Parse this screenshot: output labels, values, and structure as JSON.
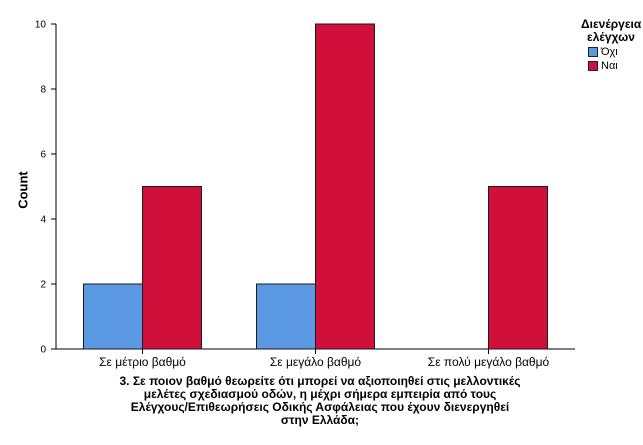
{
  "chart_data": {
    "type": "bar",
    "categories": [
      "Σε μέτριο βαθμό",
      "Σε μεγάλο βαθμό",
      "Σε πολύ μεγάλο βαθμό"
    ],
    "series": [
      {
        "name": "Όχι",
        "values": [
          2,
          2,
          0
        ],
        "color": "#5b9ae3"
      },
      {
        "name": "Ναι",
        "values": [
          5,
          10,
          5
        ],
        "color": "#d0103a"
      }
    ],
    "ylabel": "Count",
    "xlabel": "3. Σε ποιον βαθμό θεωρείτε ότι μπορεί να αξιοποιηθεί στις μελλοντικές\nμελέτες σχεδιασμού οδών, η μέχρι σήμερα εμπειρία από τους\nΕλέγχους/Επιθεωρήσεις Οδικής Ασφάλειας που έχουν διενεργηθεί\nστην Ελλάδα;",
    "ylim": [
      0,
      10
    ],
    "yticks": [
      "0",
      "2",
      "4",
      "6",
      "8",
      "10"
    ],
    "legend_title": "Διενέργεια\nελέγχων",
    "legend_position": "top-right",
    "grid": false
  }
}
